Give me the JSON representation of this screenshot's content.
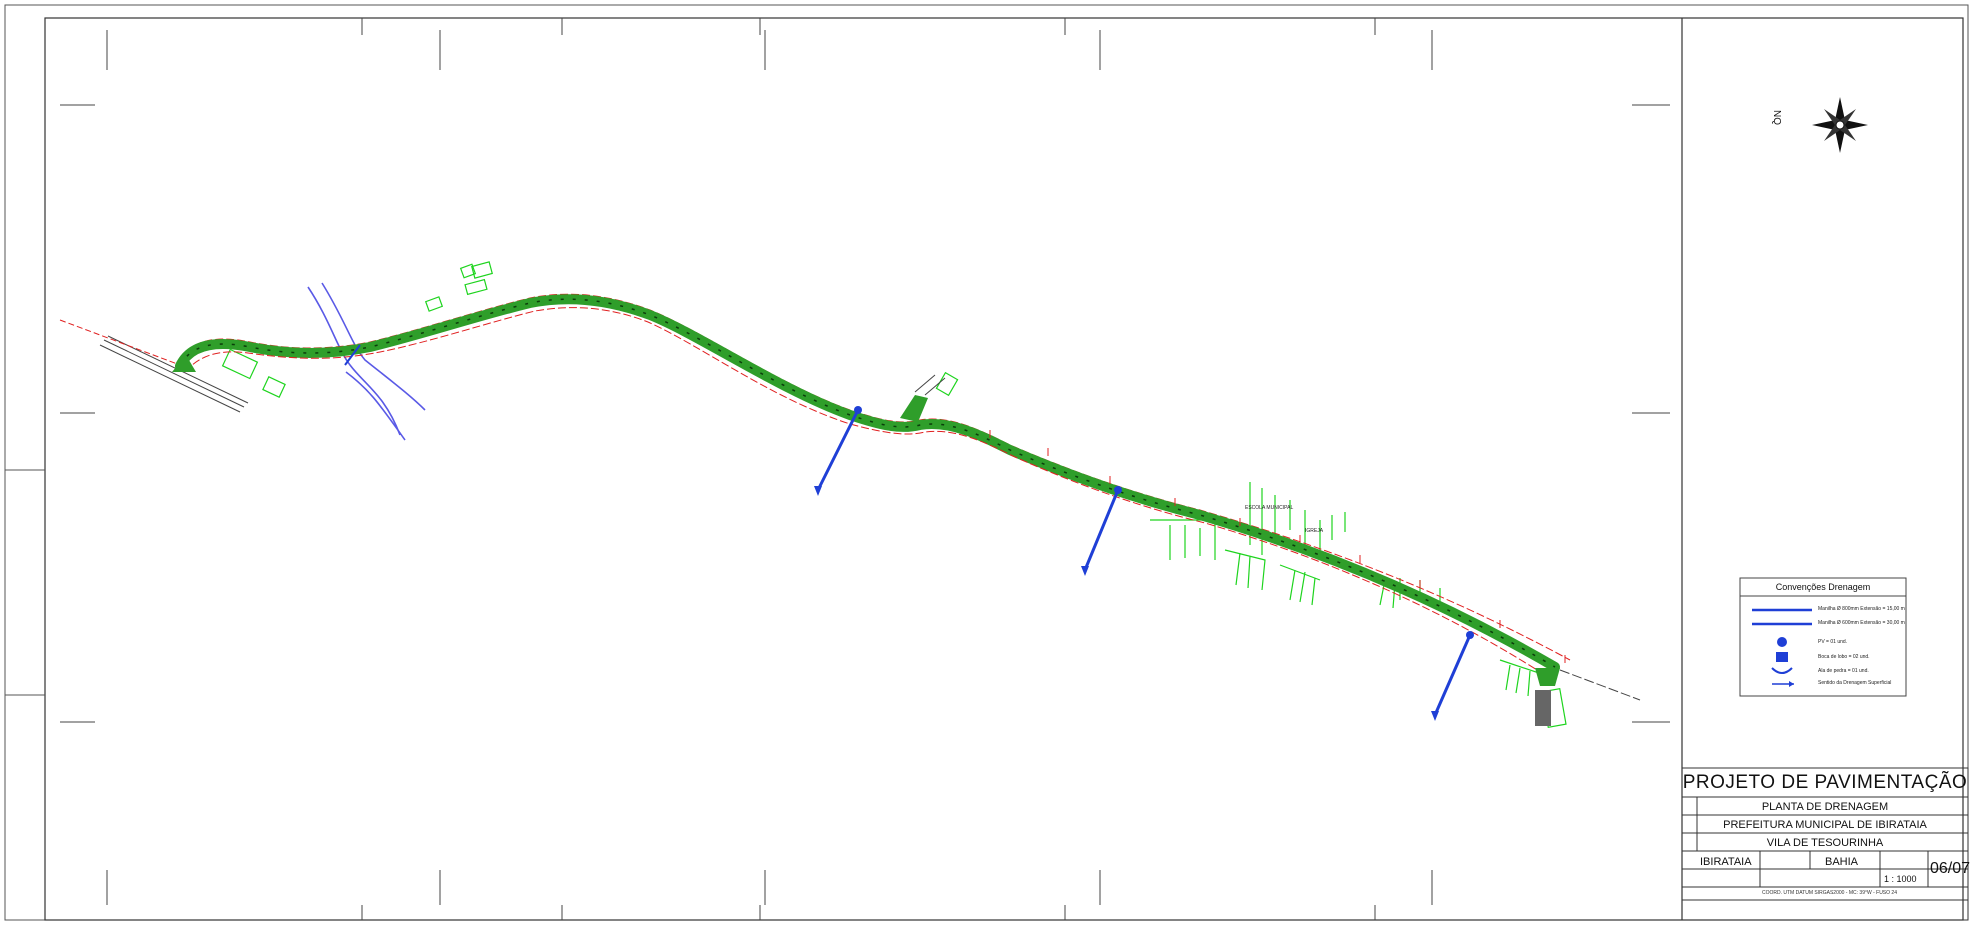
{
  "title_block": {
    "project_title": "PROJETO DE PAVIMENTAÇÃO",
    "drawing_name": "PLANTA DE DRENAGEM",
    "client": "PREFEITURA MUNICIPAL DE IBIRATAIA",
    "location": "VILA DE TESOURINHA",
    "municipality": "IBIRATAIA",
    "state": "BAHIA",
    "scale": "1 : 1000",
    "sheet": "06/07",
    "coordinates_note": "COORD. UTM DATUM SIRGAS2000 - MC: 39°W - FUSO 24"
  },
  "legend": {
    "title": "Convenções Drenagem",
    "items": [
      {
        "icon": "pipe-800-line",
        "label": "Manilha Ø 800mm Extensão = 15,00 m"
      },
      {
        "icon": "pipe-600-line",
        "label": "Manilha Ø 600mm Extensão = 30,00 m"
      },
      {
        "icon": "manhole-icon",
        "label": "PV = 01 und."
      },
      {
        "icon": "inlet-icon",
        "label": "Boca de lobo = 02 und."
      },
      {
        "icon": "headwall-icon",
        "label": "Ala de pedra = 01 und."
      },
      {
        "icon": "flow-arrow-icon",
        "label": "Sentido da Drenagem Superficial"
      }
    ]
  },
  "map": {
    "labels": {
      "school": "ESCOLA MUNICIPAL",
      "igreja": "IGREJA"
    },
    "north_label": "NQ"
  },
  "colors": {
    "road": "#2f9e2a",
    "road_axis": "#0b3d0b",
    "boundary": "#e02020",
    "buildings": "#1ed41e",
    "drainage": "#1f3fd6",
    "river": "#5a5ae6"
  }
}
